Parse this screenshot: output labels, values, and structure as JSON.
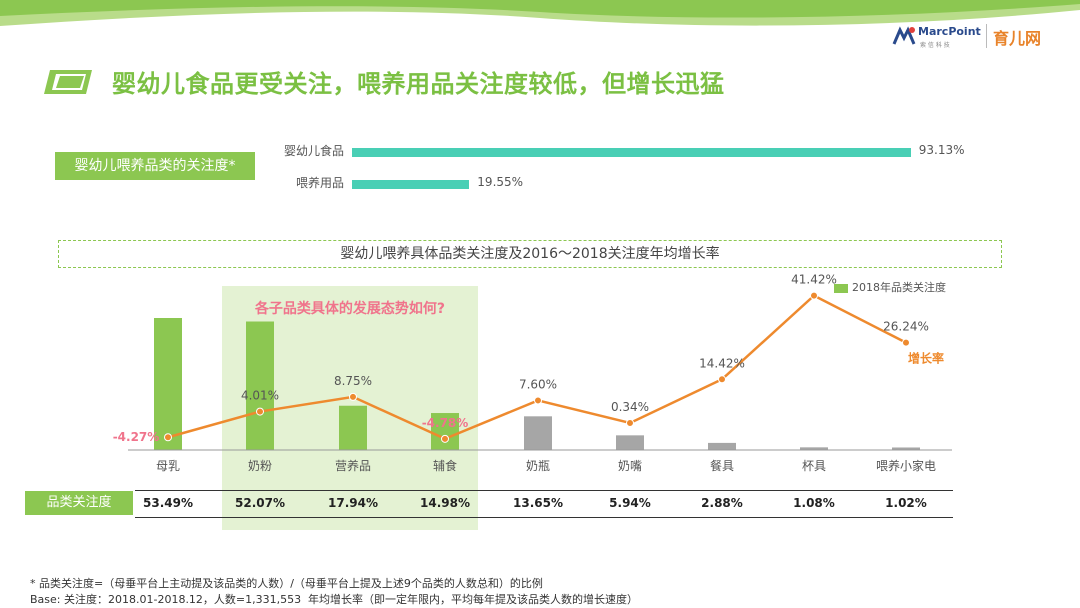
{
  "header": {
    "logo_marcpoint": "MarcPoint",
    "logo_marcpoint_sub": "索 信 科 技",
    "logo_yuer": "育儿网"
  },
  "title": "婴幼儿食品更受关注，喂养用品关注度较低，但增长迅猛",
  "attention_label": "婴幼儿喂养品类的关注度*",
  "sub_title": "婴幼儿喂养具体品类关注度及2016～2018关注度年均增长率",
  "question": "各子品类具体的发展态势如何?",
  "row_label": "品类关注度",
  "notes": {
    "line1": "* 品类关注度=（母垂平台上主动提及该品类的人数）/（母垂平台上提及上述9个品类的人数总和）的比例",
    "line2": "Base: 关注度：2018.01-2018.12，人数=1,331,553",
    "line3": "年均增长率（即一定年限内，平均每年提及该品类人数的增长速度）"
  },
  "colors": {
    "green": "#8cc751",
    "gray": "#a6a6a6",
    "teal": "#49cfb5",
    "orange": "#ee8a2e",
    "pink": "#f0748c"
  },
  "chart_data": [
    {
      "type": "bar",
      "orientation": "horizontal",
      "categories": [
        "婴幼儿食品",
        "喂养用品"
      ],
      "values": [
        93.13,
        19.55
      ],
      "value_labels": [
        "93.13%",
        "19.55%"
      ],
      "unit": "%"
    },
    {
      "type": "bar+line",
      "categories": [
        "母乳",
        "奶粉",
        "营养品",
        "辅食",
        "奶瓶",
        "奶嘴",
        "餐具",
        "杯具",
        "喂养小家电"
      ],
      "series": [
        {
          "name": "2018年品类关注度",
          "kind": "bar",
          "values": [
            53.49,
            52.07,
            17.94,
            14.98,
            13.65,
            5.94,
            2.88,
            1.08,
            1.02
          ],
          "value_labels": [
            "53.49%",
            "52.07%",
            "17.94%",
            "14.98%",
            "13.65%",
            "5.94%",
            "2.88%",
            "1.08%",
            "1.02%"
          ],
          "colors": [
            "green",
            "green",
            "green",
            "green",
            "gray",
            "gray",
            "gray",
            "gray",
            "gray"
          ]
        },
        {
          "name": "增长率",
          "kind": "line",
          "values": [
            -4.27,
            4.01,
            8.75,
            -4.78,
            7.6,
            0.34,
            14.42,
            41.42,
            26.24
          ],
          "value_labels": [
            "-4.27%",
            "4.01%",
            "8.75%",
            "-4.78%",
            "7.60%",
            "0.34%",
            "14.42%",
            "41.42%",
            "26.24%"
          ]
        }
      ],
      "legend": "top-right"
    }
  ]
}
